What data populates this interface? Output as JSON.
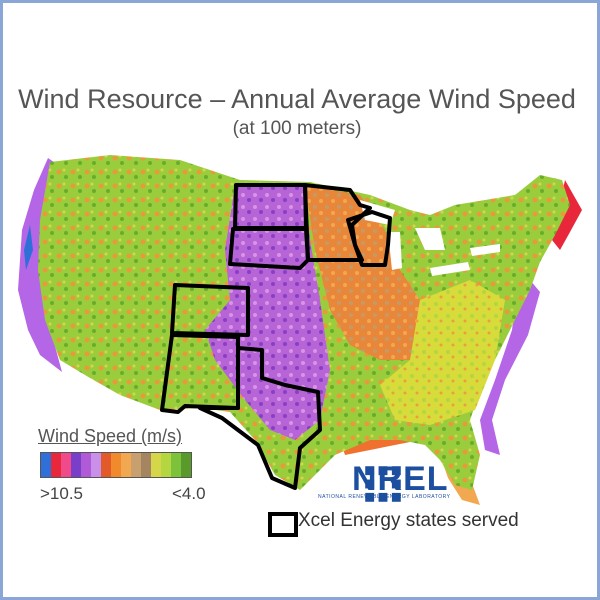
{
  "title": "Wind Resource – Annual Average Wind Speed",
  "subtitle": "(at 100 meters)",
  "legend": {
    "title": "Wind Speed (m/s)",
    "high_label": ">10.5",
    "low_label": "<4.0",
    "colors": [
      "#2f6fd8",
      "#e8283a",
      "#f04a8a",
      "#7a3fc8",
      "#b05ad8",
      "#c890e8",
      "#e35a2a",
      "#f08a2c",
      "#f2a850",
      "#c8a070",
      "#a58560",
      "#d6d64a",
      "#b4d640",
      "#7cc23a",
      "#5a9a2c"
    ]
  },
  "logo": {
    "name": "NREL",
    "subtitle": "NATIONAL RENEWABLE ENERGY LABORATORY"
  },
  "key": {
    "label": "Xcel Energy states served"
  },
  "states_outlined": [
    "North Dakota",
    "South Dakota",
    "Minnesota",
    "Wisconsin",
    "Michigan",
    "Colorado",
    "New Mexico",
    "Texas"
  ]
}
